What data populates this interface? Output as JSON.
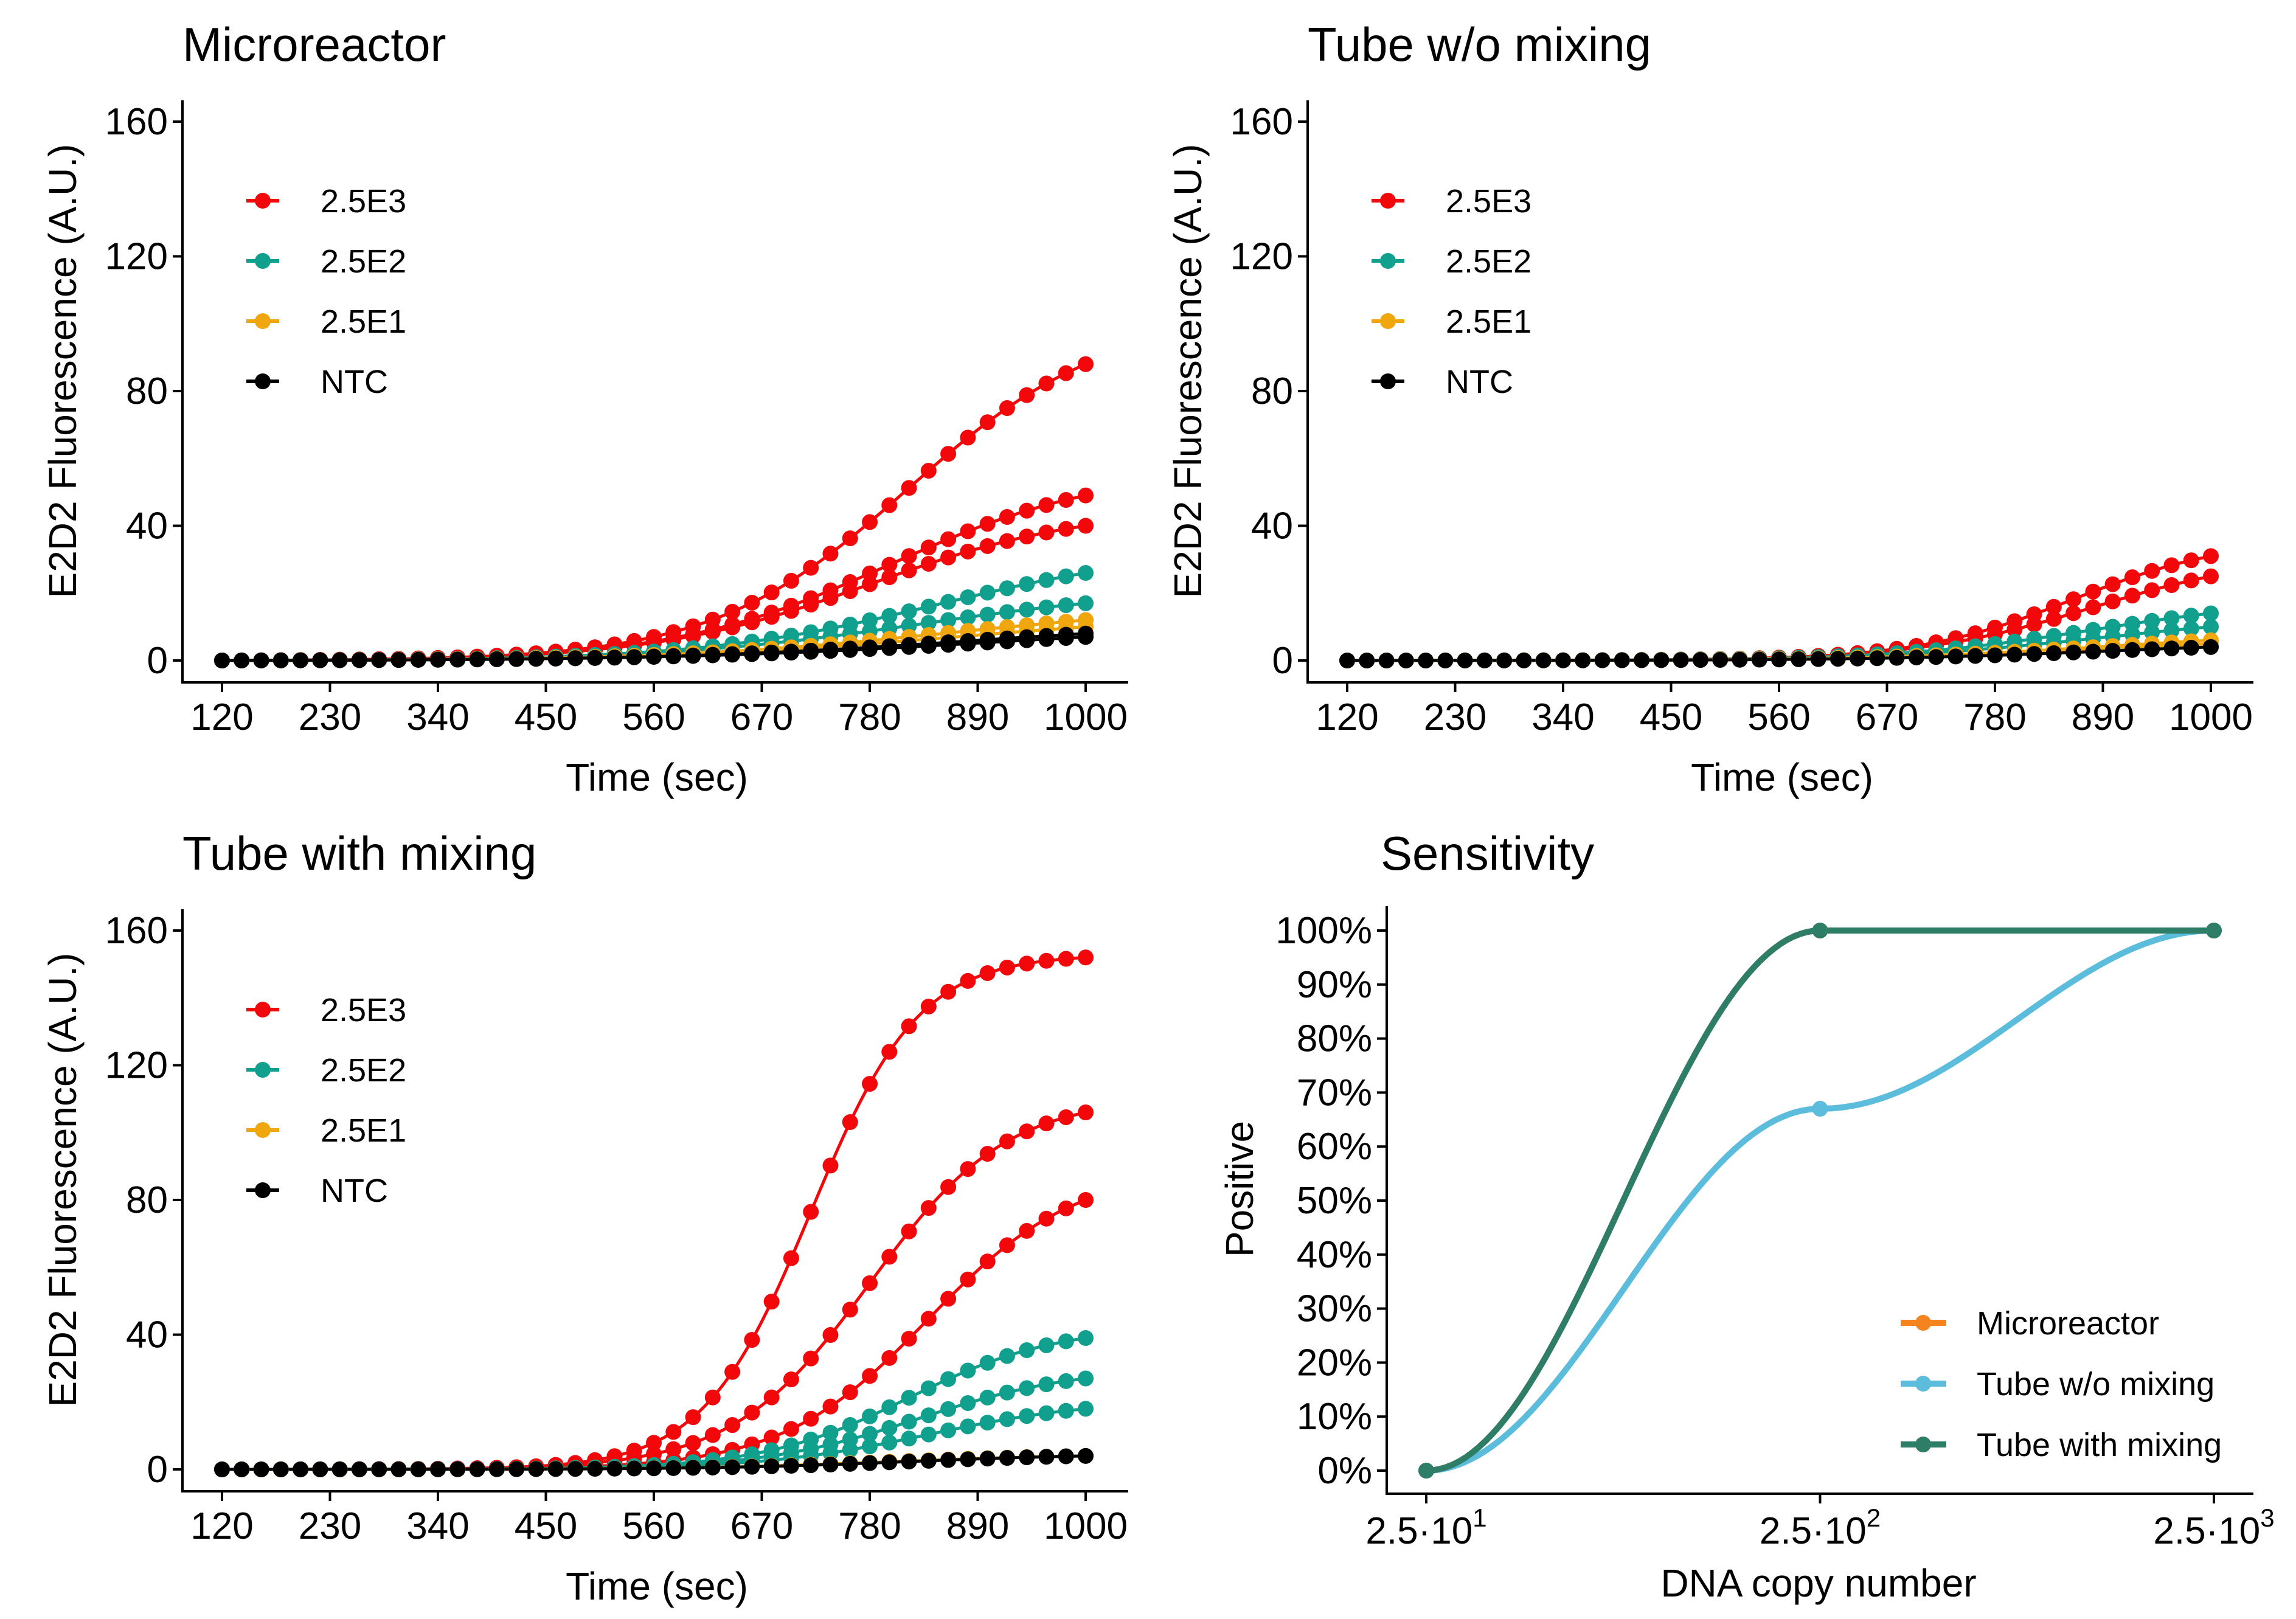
{
  "colors": {
    "2.5E3": "#f2070b",
    "2.5E2": "#12a08e",
    "2.5E1": "#efa70d",
    "NTC": "#000000",
    "Microreactor": "#f5841f",
    "Tube w/o mixing": "#5cbcdc",
    "Tube with mixing": "#2e7d66"
  },
  "chart_data": [
    {
      "type": "line",
      "title": "Microreactor",
      "xlabel": "Time (sec)",
      "ylabel": "E2D2 Fluorescence (A.U.)",
      "xlim": [
        120,
        1000
      ],
      "ylim": [
        0,
        160
      ],
      "xticks": [
        "120",
        "230",
        "340",
        "450",
        "560",
        "670",
        "780",
        "890",
        "1000"
      ],
      "yticks": [
        "0",
        "40",
        "80",
        "120",
        "160"
      ],
      "legend": [
        "2.5E3",
        "2.5E2",
        "2.5E1",
        "NTC"
      ],
      "legend_position": "top-left",
      "x_step": 20,
      "series": [
        {
          "name": "2.5E3",
          "final": 88,
          "midpoint": 820,
          "slope": 100
        },
        {
          "name": "2.5E3",
          "final": 49,
          "midpoint": 800,
          "slope": 110
        },
        {
          "name": "2.5E3",
          "final": 40,
          "midpoint": 780,
          "slope": 110
        },
        {
          "name": "2.5E2",
          "final": 26,
          "midpoint": 850,
          "slope": 120
        },
        {
          "name": "2.5E2",
          "final": 17,
          "midpoint": 830,
          "slope": 130
        },
        {
          "name": "2.5E1",
          "final": 12,
          "midpoint": 860,
          "slope": 140
        },
        {
          "name": "2.5E1",
          "final": 10,
          "midpoint": 870,
          "slope": 150
        },
        {
          "name": "NTC",
          "final": 8,
          "midpoint": 880,
          "slope": 150
        },
        {
          "name": "NTC",
          "final": 7,
          "midpoint": 900,
          "slope": 160
        }
      ]
    },
    {
      "type": "line",
      "title": "Tube w/o mixing",
      "xlabel": "Time (sec)",
      "ylabel": "E2D2 Fluorescence (A.U.)",
      "xlim": [
        120,
        1000
      ],
      "ylim": [
        0,
        160
      ],
      "xticks": [
        "120",
        "230",
        "340",
        "450",
        "560",
        "670",
        "780",
        "890",
        "1000"
      ],
      "yticks": [
        "0",
        "40",
        "80",
        "120",
        "160"
      ],
      "legend": [
        "2.5E3",
        "2.5E2",
        "2.5E1",
        "NTC"
      ],
      "legend_position": "top-left",
      "x_step": 20,
      "series": [
        {
          "name": "2.5E3",
          "final": 31,
          "midpoint": 860,
          "slope": 80
        },
        {
          "name": "2.5E3",
          "final": 25,
          "midpoint": 880,
          "slope": 90
        },
        {
          "name": "2.5E2",
          "final": 14,
          "midpoint": 880,
          "slope": 100
        },
        {
          "name": "2.5E2",
          "final": 10,
          "midpoint": 890,
          "slope": 110
        },
        {
          "name": "2.5E1",
          "final": 6,
          "midpoint": 900,
          "slope": 120
        },
        {
          "name": "2.5E1",
          "final": 5,
          "midpoint": 900,
          "slope": 120
        },
        {
          "name": "NTC",
          "final": 4,
          "midpoint": 900,
          "slope": 120
        }
      ]
    },
    {
      "type": "line",
      "title": "Tube with mixing",
      "xlabel": "Time (sec)",
      "ylabel": "E2D2 Fluorescence (A.U.)",
      "xlim": [
        120,
        1000
      ],
      "ylim": [
        0,
        160
      ],
      "xticks": [
        "120",
        "230",
        "340",
        "450",
        "560",
        "670",
        "780",
        "890",
        "1000"
      ],
      "yticks": [
        "0",
        "40",
        "80",
        "120",
        "160"
      ],
      "legend": [
        "2.5E3",
        "2.5E2",
        "2.5E1",
        "NTC"
      ],
      "legend_position": "top-left",
      "x_step": 20,
      "series": [
        {
          "name": "2.5E3",
          "final": 152,
          "midpoint": 720,
          "slope": 55
        },
        {
          "name": "2.5E3",
          "final": 106,
          "midpoint": 780,
          "slope": 70
        },
        {
          "name": "2.5E3",
          "final": 80,
          "midpoint": 840,
          "slope": 75
        },
        {
          "name": "2.5E2",
          "final": 39,
          "midpoint": 820,
          "slope": 75
        },
        {
          "name": "2.5E2",
          "final": 27,
          "midpoint": 830,
          "slope": 80
        },
        {
          "name": "2.5E2",
          "final": 18,
          "midpoint": 840,
          "slope": 85
        },
        {
          "name": "2.5E1",
          "final": 4,
          "midpoint": 800,
          "slope": 100
        },
        {
          "name": "NTC",
          "final": 4,
          "midpoint": 820,
          "slope": 100
        }
      ]
    },
    {
      "type": "line",
      "title": "Sensitivity",
      "xlabel": "DNA copy number",
      "ylabel": "Positive",
      "x_scale": "log",
      "x": [
        25,
        250,
        2500
      ],
      "xticks": [
        {
          "base": "2.5·10",
          "exp": "1"
        },
        {
          "base": "2.5·10",
          "exp": "2"
        },
        {
          "base": "2.5·10",
          "exp": "3"
        }
      ],
      "ylim": [
        0,
        100
      ],
      "yticks": [
        "0%",
        "10%",
        "20%",
        "30%",
        "40%",
        "50%",
        "60%",
        "70%",
        "80%",
        "90%",
        "100%"
      ],
      "legend": [
        "Microreactor",
        "Tube w/o mixing",
        "Tube with mixing"
      ],
      "legend_position": "bottom-right",
      "series": [
        {
          "name": "Microreactor",
          "values": [
            0,
            100,
            100
          ]
        },
        {
          "name": "Tube w/o mixing",
          "values": [
            0,
            67,
            100
          ]
        },
        {
          "name": "Tube with mixing",
          "values": [
            0,
            100,
            100
          ]
        }
      ]
    }
  ]
}
